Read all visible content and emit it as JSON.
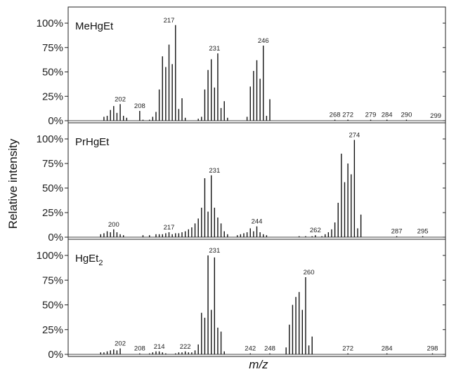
{
  "figure": {
    "ylabel": "Relative intensity",
    "xlabel": "m/z"
  },
  "chart_data": [
    {
      "type": "bar",
      "title": "MeHgEt",
      "ylabel": "Relative intensity",
      "xlabel": "m/z",
      "ylim": [
        0,
        100
      ],
      "yticks": [
        "0%",
        "25%",
        "50%",
        "75%",
        "100%"
      ],
      "annotations": [
        "202",
        "208",
        "217",
        "231",
        "246",
        "268",
        "272",
        "279",
        "284",
        "290",
        "299"
      ],
      "peaks": [
        {
          "mz": 197,
          "value": 4
        },
        {
          "mz": 198,
          "value": 5
        },
        {
          "mz": 199,
          "value": 11
        },
        {
          "mz": 200,
          "value": 15
        },
        {
          "mz": 201,
          "value": 8
        },
        {
          "mz": 202,
          "value": 17
        },
        {
          "mz": 203,
          "value": 5
        },
        {
          "mz": 204,
          "value": 3
        },
        {
          "mz": 208,
          "value": 10
        },
        {
          "mz": 209,
          "value": 1
        },
        {
          "mz": 211,
          "value": 1
        },
        {
          "mz": 212,
          "value": 4
        },
        {
          "mz": 213,
          "value": 9
        },
        {
          "mz": 214,
          "value": 32
        },
        {
          "mz": 215,
          "value": 66
        },
        {
          "mz": 216,
          "value": 55
        },
        {
          "mz": 217,
          "value": 78
        },
        {
          "mz": 218,
          "value": 58
        },
        {
          "mz": 219,
          "value": 98
        },
        {
          "mz": 220,
          "value": 12
        },
        {
          "mz": 221,
          "value": 23
        },
        {
          "mz": 222,
          "value": 3
        },
        {
          "mz": 226,
          "value": 2
        },
        {
          "mz": 227,
          "value": 4
        },
        {
          "mz": 228,
          "value": 32
        },
        {
          "mz": 229,
          "value": 52
        },
        {
          "mz": 230,
          "value": 63
        },
        {
          "mz": 231,
          "value": 34
        },
        {
          "mz": 232,
          "value": 69
        },
        {
          "mz": 233,
          "value": 13
        },
        {
          "mz": 234,
          "value": 20
        },
        {
          "mz": 235,
          "value": 3
        },
        {
          "mz": 241,
          "value": 4
        },
        {
          "mz": 242,
          "value": 35
        },
        {
          "mz": 243,
          "value": 51
        },
        {
          "mz": 244,
          "value": 62
        },
        {
          "mz": 245,
          "value": 43
        },
        {
          "mz": 246,
          "value": 77
        },
        {
          "mz": 247,
          "value": 5
        },
        {
          "mz": 248,
          "value": 22
        },
        {
          "mz": 268,
          "value": 1
        },
        {
          "mz": 272,
          "value": 1
        },
        {
          "mz": 279,
          "value": 1
        },
        {
          "mz": 284,
          "value": 1
        },
        {
          "mz": 290,
          "value": 1
        }
      ]
    },
    {
      "type": "bar",
      "title": "PrHgEt",
      "ylabel": "Relative intensity",
      "xlabel": "m/z",
      "ylim": [
        0,
        100
      ],
      "yticks": [
        "0%",
        "25%",
        "50%",
        "75%",
        "100%"
      ],
      "annotations": [
        "200",
        "217",
        "231",
        "244",
        "262",
        "274",
        "287",
        "295"
      ],
      "peaks": [
        {
          "mz": 196,
          "value": 3
        },
        {
          "mz": 197,
          "value": 4
        },
        {
          "mz": 198,
          "value": 6
        },
        {
          "mz": 199,
          "value": 5
        },
        {
          "mz": 200,
          "value": 8
        },
        {
          "mz": 201,
          "value": 5
        },
        {
          "mz": 202,
          "value": 3
        },
        {
          "mz": 203,
          "value": 2
        },
        {
          "mz": 209,
          "value": 2
        },
        {
          "mz": 211,
          "value": 2
        },
        {
          "mz": 213,
          "value": 3
        },
        {
          "mz": 214,
          "value": 3
        },
        {
          "mz": 215,
          "value": 3
        },
        {
          "mz": 216,
          "value": 4
        },
        {
          "mz": 217,
          "value": 5
        },
        {
          "mz": 218,
          "value": 3
        },
        {
          "mz": 219,
          "value": 4
        },
        {
          "mz": 220,
          "value": 4
        },
        {
          "mz": 221,
          "value": 5
        },
        {
          "mz": 222,
          "value": 6
        },
        {
          "mz": 223,
          "value": 8
        },
        {
          "mz": 224,
          "value": 10
        },
        {
          "mz": 225,
          "value": 14
        },
        {
          "mz": 226,
          "value": 19
        },
        {
          "mz": 227,
          "value": 30
        },
        {
          "mz": 228,
          "value": 60
        },
        {
          "mz": 229,
          "value": 26
        },
        {
          "mz": 230,
          "value": 63
        },
        {
          "mz": 231,
          "value": 30
        },
        {
          "mz": 232,
          "value": 20
        },
        {
          "mz": 233,
          "value": 14
        },
        {
          "mz": 234,
          "value": 6
        },
        {
          "mz": 235,
          "value": 3
        },
        {
          "mz": 238,
          "value": 2
        },
        {
          "mz": 239,
          "value": 3
        },
        {
          "mz": 240,
          "value": 4
        },
        {
          "mz": 241,
          "value": 5
        },
        {
          "mz": 242,
          "value": 9
        },
        {
          "mz": 243,
          "value": 6
        },
        {
          "mz": 244,
          "value": 11
        },
        {
          "mz": 245,
          "value": 5
        },
        {
          "mz": 246,
          "value": 3
        },
        {
          "mz": 247,
          "value": 2
        },
        {
          "mz": 257,
          "value": 1
        },
        {
          "mz": 259,
          "value": 1
        },
        {
          "mz": 261,
          "value": 1
        },
        {
          "mz": 262,
          "value": 2
        },
        {
          "mz": 264,
          "value": 1
        },
        {
          "mz": 265,
          "value": 3
        },
        {
          "mz": 266,
          "value": 5
        },
        {
          "mz": 267,
          "value": 8
        },
        {
          "mz": 268,
          "value": 15
        },
        {
          "mz": 269,
          "value": 35
        },
        {
          "mz": 270,
          "value": 85
        },
        {
          "mz": 271,
          "value": 56
        },
        {
          "mz": 272,
          "value": 75
        },
        {
          "mz": 273,
          "value": 64
        },
        {
          "mz": 274,
          "value": 99
        },
        {
          "mz": 275,
          "value": 9
        },
        {
          "mz": 276,
          "value": 23
        },
        {
          "mz": 287,
          "value": 1
        },
        {
          "mz": 295,
          "value": 1
        }
      ]
    },
    {
      "type": "bar",
      "title": "HgEt",
      "title_subscript": "2",
      "ylabel": "Relative intensity",
      "xlabel": "m/z",
      "ylim": [
        0,
        100
      ],
      "yticks": [
        "0%",
        "25%",
        "50%",
        "75%",
        "100%"
      ],
      "annotations": [
        "202",
        "208",
        "214",
        "222",
        "231",
        "242",
        "248",
        "260",
        "272",
        "284",
        "298"
      ],
      "peaks": [
        {
          "mz": 196,
          "value": 2
        },
        {
          "mz": 197,
          "value": 2
        },
        {
          "mz": 198,
          "value": 3
        },
        {
          "mz": 199,
          "value": 4
        },
        {
          "mz": 200,
          "value": 5
        },
        {
          "mz": 201,
          "value": 4
        },
        {
          "mz": 202,
          "value": 6
        },
        {
          "mz": 208,
          "value": 1
        },
        {
          "mz": 211,
          "value": 1
        },
        {
          "mz": 212,
          "value": 2
        },
        {
          "mz": 213,
          "value": 3
        },
        {
          "mz": 214,
          "value": 3
        },
        {
          "mz": 215,
          "value": 2
        },
        {
          "mz": 216,
          "value": 1
        },
        {
          "mz": 219,
          "value": 1
        },
        {
          "mz": 220,
          "value": 2
        },
        {
          "mz": 221,
          "value": 2
        },
        {
          "mz": 222,
          "value": 3
        },
        {
          "mz": 223,
          "value": 2
        },
        {
          "mz": 224,
          "value": 2
        },
        {
          "mz": 225,
          "value": 4
        },
        {
          "mz": 226,
          "value": 10
        },
        {
          "mz": 227,
          "value": 42
        },
        {
          "mz": 228,
          "value": 37
        },
        {
          "mz": 229,
          "value": 100
        },
        {
          "mz": 230,
          "value": 45
        },
        {
          "mz": 231,
          "value": 98
        },
        {
          "mz": 232,
          "value": 27
        },
        {
          "mz": 233,
          "value": 23
        },
        {
          "mz": 234,
          "value": 3
        },
        {
          "mz": 242,
          "value": 1
        },
        {
          "mz": 248,
          "value": 1
        },
        {
          "mz": 253,
          "value": 7
        },
        {
          "mz": 254,
          "value": 30
        },
        {
          "mz": 255,
          "value": 50
        },
        {
          "mz": 256,
          "value": 58
        },
        {
          "mz": 257,
          "value": 63
        },
        {
          "mz": 258,
          "value": 45
        },
        {
          "mz": 259,
          "value": 78
        },
        {
          "mz": 260,
          "value": 9
        },
        {
          "mz": 261,
          "value": 18
        },
        {
          "mz": 272,
          "value": 1
        },
        {
          "mz": 284,
          "value": 1
        },
        {
          "mz": 298,
          "value": 1
        }
      ]
    }
  ]
}
